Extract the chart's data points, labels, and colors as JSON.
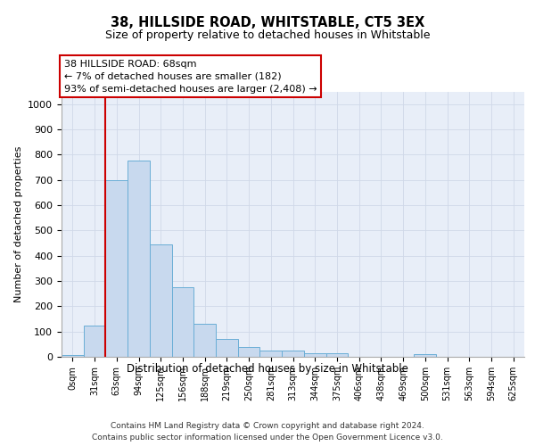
{
  "title": "38, HILLSIDE ROAD, WHITSTABLE, CT5 3EX",
  "subtitle": "Size of property relative to detached houses in Whitstable",
  "xlabel": "Distribution of detached houses by size in Whitstable",
  "ylabel": "Number of detached properties",
  "bar_labels": [
    "0sqm",
    "31sqm",
    "63sqm",
    "94sqm",
    "125sqm",
    "156sqm",
    "188sqm",
    "219sqm",
    "250sqm",
    "281sqm",
    "313sqm",
    "344sqm",
    "375sqm",
    "406sqm",
    "438sqm",
    "469sqm",
    "500sqm",
    "531sqm",
    "563sqm",
    "594sqm",
    "625sqm"
  ],
  "bar_values": [
    8,
    125,
    700,
    775,
    443,
    275,
    132,
    70,
    40,
    24,
    24,
    13,
    13,
    0,
    0,
    0,
    9,
    0,
    0,
    0,
    0
  ],
  "bar_color": "#c8d9ee",
  "bar_edge_color": "#6aaed6",
  "vline_x_idx": 2,
  "vline_color": "#cc0000",
  "annotation_text_line1": "38 HILLSIDE ROAD: 68sqm",
  "annotation_text_line2": "← 7% of detached houses are smaller (182)",
  "annotation_text_line3": "93% of semi-detached houses are larger (2,408) →",
  "annotation_box_color": "#ffffff",
  "annotation_border_color": "#cc0000",
  "ylim": [
    0,
    1050
  ],
  "yticks": [
    0,
    100,
    200,
    300,
    400,
    500,
    600,
    700,
    800,
    900,
    1000
  ],
  "grid_color": "#d0d8e8",
  "bg_color": "#e8eef8",
  "footer_line1": "Contains HM Land Registry data © Crown copyright and database right 2024.",
  "footer_line2": "Contains public sector information licensed under the Open Government Licence v3.0."
}
